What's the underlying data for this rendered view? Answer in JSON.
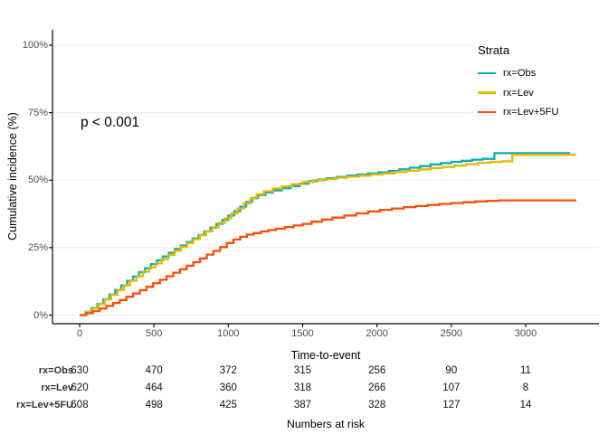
{
  "pvalue": {
    "text": "p < 0.001"
  },
  "axes": {
    "y_label": "Cumulative incidence (%)",
    "x_label": "Time-to-event",
    "y_ticks": [
      {
        "label": "0%",
        "value": 0
      },
      {
        "label": "25%",
        "value": 25
      },
      {
        "label": "50%",
        "value": 50
      },
      {
        "label": "75%",
        "value": 75
      },
      {
        "label": "100%",
        "value": 100
      }
    ],
    "x_ticks": [
      {
        "label": "0",
        "value": 0
      },
      {
        "label": "500",
        "value": 500
      },
      {
        "label": "1000",
        "value": 1000
      },
      {
        "label": "1500",
        "value": 1500
      },
      {
        "label": "2000",
        "value": 2000
      },
      {
        "label": "2500",
        "value": 2500
      },
      {
        "label": "3000",
        "value": 3000
      }
    ]
  },
  "legend": {
    "title": "Strata",
    "items": [
      {
        "label": "rx=Obs",
        "color": "#00AFBB"
      },
      {
        "label": "rx=Lev",
        "color": "#E7B800"
      },
      {
        "label": "rx=Lev+5FU",
        "color": "#FC4E07"
      }
    ]
  },
  "chart_data": {
    "type": "line",
    "step": true,
    "title": "",
    "xlabel": "Time-to-event",
    "ylabel": "Cumulative incidence (%)",
    "xlim": [
      0,
      3400
    ],
    "ylim": [
      0,
      100
    ],
    "grid": "horizontal-only",
    "legend_position": "top-right",
    "annotation": "p < 0.001",
    "series": [
      {
        "name": "rx=Obs",
        "color": "#00AFBB",
        "final_value_pct": 60,
        "points": [
          [
            0,
            0
          ],
          [
            40,
            1.2
          ],
          [
            80,
            2.6
          ],
          [
            120,
            4.2
          ],
          [
            160,
            5.9
          ],
          [
            200,
            7.6
          ],
          [
            240,
            9.3
          ],
          [
            280,
            11
          ],
          [
            320,
            12.7
          ],
          [
            360,
            14.3
          ],
          [
            400,
            15.9
          ],
          [
            440,
            17.4
          ],
          [
            480,
            18.9
          ],
          [
            520,
            20.3
          ],
          [
            560,
            21.7
          ],
          [
            600,
            23.1
          ],
          [
            640,
            24.5
          ],
          [
            680,
            25.8
          ],
          [
            720,
            27.1
          ],
          [
            760,
            28.4
          ],
          [
            800,
            29.7
          ],
          [
            840,
            31
          ],
          [
            880,
            32.4
          ],
          [
            920,
            33.8
          ],
          [
            960,
            35.3
          ],
          [
            1000,
            36.9
          ],
          [
            1040,
            38.5
          ],
          [
            1080,
            40.2
          ],
          [
            1120,
            41.9
          ],
          [
            1160,
            43.4
          ],
          [
            1200,
            44.5
          ],
          [
            1250,
            45.4
          ],
          [
            1300,
            46.2
          ],
          [
            1360,
            47
          ],
          [
            1420,
            47.8
          ],
          [
            1480,
            48.7
          ],
          [
            1540,
            49.6
          ],
          [
            1600,
            50.2
          ],
          [
            1660,
            50.7
          ],
          [
            1730,
            51.2
          ],
          [
            1800,
            51.7
          ],
          [
            1870,
            52.1
          ],
          [
            1940,
            52.5
          ],
          [
            2010,
            52.9
          ],
          [
            2080,
            53.4
          ],
          [
            2150,
            54
          ],
          [
            2220,
            54.6
          ],
          [
            2290,
            55.2
          ],
          [
            2360,
            55.8
          ],
          [
            2430,
            56.3
          ],
          [
            2500,
            56.8
          ],
          [
            2570,
            57.2
          ],
          [
            2640,
            57.6
          ],
          [
            2710,
            57.9
          ],
          [
            2790,
            60
          ],
          [
            3300,
            60
          ]
        ]
      },
      {
        "name": "rx=Lev",
        "color": "#E7B800",
        "final_value_pct": 59.4,
        "points": [
          [
            0,
            0
          ],
          [
            42,
            1.1
          ],
          [
            85,
            2.5
          ],
          [
            128,
            4.1
          ],
          [
            170,
            5.8
          ],
          [
            212,
            7.5
          ],
          [
            255,
            9.3
          ],
          [
            298,
            11.1
          ],
          [
            340,
            12.8
          ],
          [
            382,
            14.4
          ],
          [
            425,
            16.1
          ],
          [
            468,
            17.7
          ],
          [
            510,
            19.2
          ],
          [
            552,
            20.7
          ],
          [
            595,
            22.3
          ],
          [
            638,
            23.9
          ],
          [
            680,
            25.3
          ],
          [
            722,
            26.7
          ],
          [
            765,
            28.1
          ],
          [
            808,
            29.6
          ],
          [
            850,
            31.1
          ],
          [
            892,
            32.6
          ],
          [
            935,
            34.2
          ],
          [
            978,
            35.9
          ],
          [
            1020,
            37.7
          ],
          [
            1062,
            39.5
          ],
          [
            1105,
            41.4
          ],
          [
            1148,
            43.2
          ],
          [
            1190,
            44.8
          ],
          [
            1240,
            45.9
          ],
          [
            1300,
            46.9
          ],
          [
            1360,
            47.7
          ],
          [
            1430,
            48.5
          ],
          [
            1500,
            49.3
          ],
          [
            1570,
            50
          ],
          [
            1640,
            50.4
          ],
          [
            1720,
            50.9
          ],
          [
            1800,
            51.3
          ],
          [
            1880,
            51.7
          ],
          [
            1960,
            52.1
          ],
          [
            2040,
            52.5
          ],
          [
            2120,
            53
          ],
          [
            2200,
            53.5
          ],
          [
            2280,
            54
          ],
          [
            2360,
            54.5
          ],
          [
            2440,
            54.9
          ],
          [
            2520,
            55.4
          ],
          [
            2600,
            55.9
          ],
          [
            2680,
            56.4
          ],
          [
            2760,
            56.8
          ],
          [
            2840,
            57
          ],
          [
            2910,
            59.4
          ],
          [
            3340,
            59.4
          ]
        ]
      },
      {
        "name": "rx=Lev+5FU",
        "color": "#FC4E07",
        "final_value_pct": 42.5,
        "points": [
          [
            0,
            0
          ],
          [
            45,
            0.7
          ],
          [
            90,
            1.5
          ],
          [
            135,
            2.4
          ],
          [
            180,
            3.4
          ],
          [
            225,
            4.5
          ],
          [
            270,
            5.6
          ],
          [
            315,
            6.8
          ],
          [
            360,
            8
          ],
          [
            405,
            9.2
          ],
          [
            450,
            10.5
          ],
          [
            495,
            11.8
          ],
          [
            540,
            13.1
          ],
          [
            585,
            14.4
          ],
          [
            630,
            15.7
          ],
          [
            675,
            17
          ],
          [
            720,
            18.3
          ],
          [
            765,
            19.6
          ],
          [
            810,
            21
          ],
          [
            855,
            22.4
          ],
          [
            900,
            23.8
          ],
          [
            945,
            25.2
          ],
          [
            990,
            26.7
          ],
          [
            1035,
            28
          ],
          [
            1080,
            29
          ],
          [
            1125,
            29.8
          ],
          [
            1170,
            30.4
          ],
          [
            1220,
            31
          ],
          [
            1270,
            31.5
          ],
          [
            1320,
            32
          ],
          [
            1380,
            32.6
          ],
          [
            1440,
            33.2
          ],
          [
            1500,
            33.8
          ],
          [
            1560,
            34.6
          ],
          [
            1630,
            35.4
          ],
          [
            1700,
            36.1
          ],
          [
            1780,
            36.9
          ],
          [
            1860,
            37.7
          ],
          [
            1940,
            38.4
          ],
          [
            2020,
            39
          ],
          [
            2100,
            39.5
          ],
          [
            2180,
            40
          ],
          [
            2260,
            40.4
          ],
          [
            2340,
            40.8
          ],
          [
            2420,
            41.2
          ],
          [
            2500,
            41.5
          ],
          [
            2580,
            41.8
          ],
          [
            2660,
            42.1
          ],
          [
            2740,
            42.3
          ],
          [
            2820,
            42.5
          ],
          [
            3340,
            42.5
          ]
        ]
      }
    ]
  },
  "risk_table": {
    "title": "Numbers at risk",
    "time_points": [
      0,
      500,
      1000,
      1500,
      2000,
      2500,
      3000
    ],
    "rows": [
      {
        "label": "rx=Obs",
        "values": [
          630,
          470,
          372,
          315,
          256,
          90,
          11
        ]
      },
      {
        "label": "rx=Lev",
        "values": [
          620,
          464,
          360,
          318,
          266,
          107,
          8
        ]
      },
      {
        "label": "rx=Lev+5FU",
        "values": [
          608,
          498,
          425,
          387,
          328,
          127,
          14
        ]
      }
    ]
  },
  "colors": {
    "axis_line": "#000000",
    "gridline": "#ebebeb",
    "tick_text": "#4d4d4d"
  }
}
